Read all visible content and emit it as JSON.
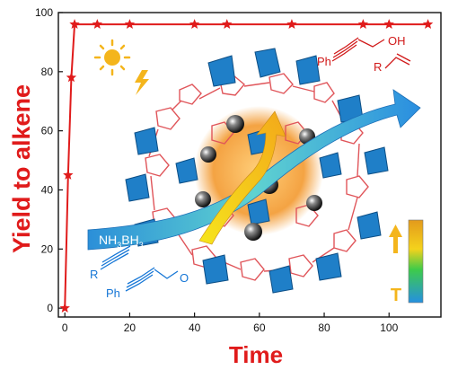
{
  "chart_data": {
    "type": "line",
    "title": "",
    "xlabel": "Time",
    "ylabel": "Yield to alkene",
    "xlim": [
      -2,
      116
    ],
    "ylim": [
      -3,
      100
    ],
    "xticks": [
      0,
      20,
      40,
      60,
      80,
      100
    ],
    "yticks": [
      0,
      20,
      40,
      60,
      80,
      100
    ],
    "grid": false,
    "series": [
      {
        "color": "#e01b1b",
        "marker": "star",
        "x": [
          0,
          1,
          2,
          3,
          10,
          20,
          40,
          50,
          70,
          92,
          100,
          112
        ],
        "y": [
          0,
          45,
          78,
          96,
          96,
          96,
          96,
          96,
          96,
          96,
          96,
          96
        ]
      }
    ]
  },
  "illustration": {
    "reactant_top": {
      "prefix": "Ph",
      "group": "OH"
    },
    "product_top": {
      "prefix": "R"
    },
    "reagent": {
      "main": "NH",
      "sub1": "3",
      "mid": "BH",
      "sub2": "3"
    },
    "reactant_bottom_1": {
      "prefix": "R"
    },
    "reactant_bottom_2": {
      "prefix": "Ph",
      "group": "O"
    },
    "gradient_label": "T",
    "colors": {
      "axis_accent": "#e01b1b",
      "chem_red": "#d11a1a",
      "chem_blue": "#1576d6"
    }
  }
}
